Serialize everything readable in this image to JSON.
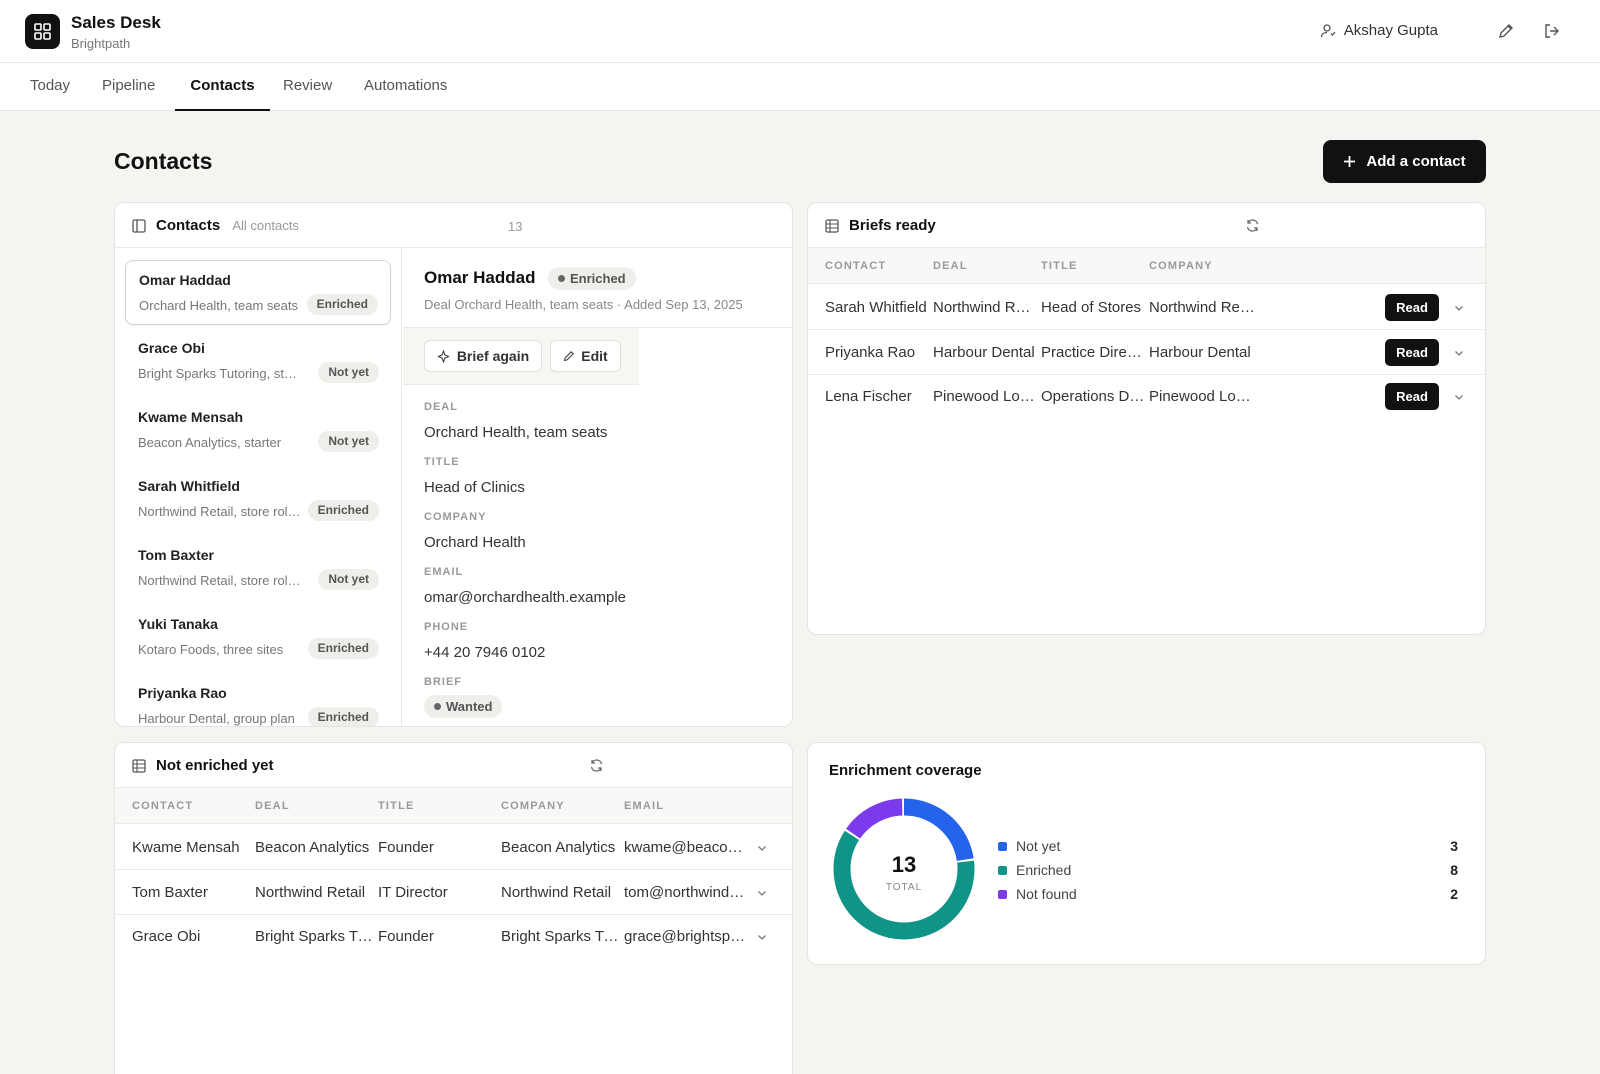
{
  "app": {
    "title": "Sales Desk",
    "subtitle": "Brightpath",
    "user": "Akshay Gupta"
  },
  "nav": {
    "tabs": [
      "Today",
      "Pipeline",
      "Contacts",
      "Review",
      "Automations"
    ],
    "active": "Contacts"
  },
  "page": {
    "title": "Contacts",
    "add_button": "Add a contact"
  },
  "contacts_panel": {
    "title": "Contacts",
    "filter": "All contacts",
    "count": "13",
    "items": [
      {
        "name": "Omar Haddad",
        "deal": "Orchard Health, team seats",
        "status": "Enriched"
      },
      {
        "name": "Grace Obi",
        "deal": "Bright Sparks Tutoring, starter",
        "status": "Not yet"
      },
      {
        "name": "Kwame Mensah",
        "deal": "Beacon Analytics, starter",
        "status": "Not yet"
      },
      {
        "name": "Sarah Whitfield",
        "deal": "Northwind Retail, store rollout",
        "status": "Enriched"
      },
      {
        "name": "Tom Baxter",
        "deal": "Northwind Retail, store rollout",
        "status": "Not yet"
      },
      {
        "name": "Yuki Tanaka",
        "deal": "Kotaro Foods, three sites",
        "status": "Enriched"
      },
      {
        "name": "Priyanka Rao",
        "deal": "Harbour Dental, group plan",
        "status": "Enriched"
      }
    ]
  },
  "detail": {
    "name": "Omar Haddad",
    "status": "Enriched",
    "meta": "Deal Orchard Health, team seats  ·  Added Sep 13, 2025",
    "brief_again": "Brief again",
    "edit": "Edit",
    "fields": [
      {
        "label": "DEAL",
        "value": "Orchard Health, team seats"
      },
      {
        "label": "TITLE",
        "value": "Head of Clinics"
      },
      {
        "label": "COMPANY",
        "value": "Orchard Health"
      },
      {
        "label": "EMAIL",
        "value": "omar@orchardhealth.example"
      },
      {
        "label": "PHONE",
        "value": "+44 20 7946 0102"
      }
    ],
    "brief_label": "BRIEF",
    "brief_status": "Wanted"
  },
  "briefs": {
    "title": "Briefs ready",
    "columns": [
      "CONTACT",
      "DEAL",
      "TITLE",
      "COMPANY"
    ],
    "action": "Read",
    "rows": [
      {
        "contact": "Sarah Whitfield",
        "deal": "Northwind Retail",
        "title": "Head of Stores",
        "company": "Northwind Retail"
      },
      {
        "contact": "Priyanka Rao",
        "deal": "Harbour Dental",
        "title": "Practice Director",
        "company": "Harbour Dental"
      },
      {
        "contact": "Lena Fischer",
        "deal": "Pinewood Logistics",
        "title": "Operations Director",
        "company": "Pinewood Logistics"
      }
    ]
  },
  "not_enriched": {
    "title": "Not enriched yet",
    "columns": [
      "CONTACT",
      "DEAL",
      "TITLE",
      "COMPANY",
      "EMAIL"
    ],
    "rows": [
      {
        "contact": "Kwame Mensah",
        "deal": "Beacon Analytics",
        "title": "Founder",
        "company": "Beacon Analytics",
        "email": "kwame@beacon.example"
      },
      {
        "contact": "Tom Baxter",
        "deal": "Northwind Retail",
        "title": "IT Director",
        "company": "Northwind Retail",
        "email": "tom@northwind.example"
      },
      {
        "contact": "Grace Obi",
        "deal": "Bright Sparks Tutoring",
        "title": "Founder",
        "company": "Bright Sparks Tutoring",
        "email": "grace@brightsparks.example"
      }
    ]
  },
  "coverage": {
    "title": "Enrichment coverage",
    "total": "13",
    "total_label": "TOTAL"
  },
  "chart_data": {
    "type": "pie",
    "title": "Enrichment coverage",
    "categories": [
      "Not yet",
      "Enriched",
      "Not found"
    ],
    "values": [
      3,
      8,
      2
    ],
    "colors": [
      "#2563eb",
      "#0f9488",
      "#7c3aed"
    ],
    "legend": "right"
  },
  "colors": {
    "accent": "#111111",
    "background": "#f5f4f1"
  }
}
